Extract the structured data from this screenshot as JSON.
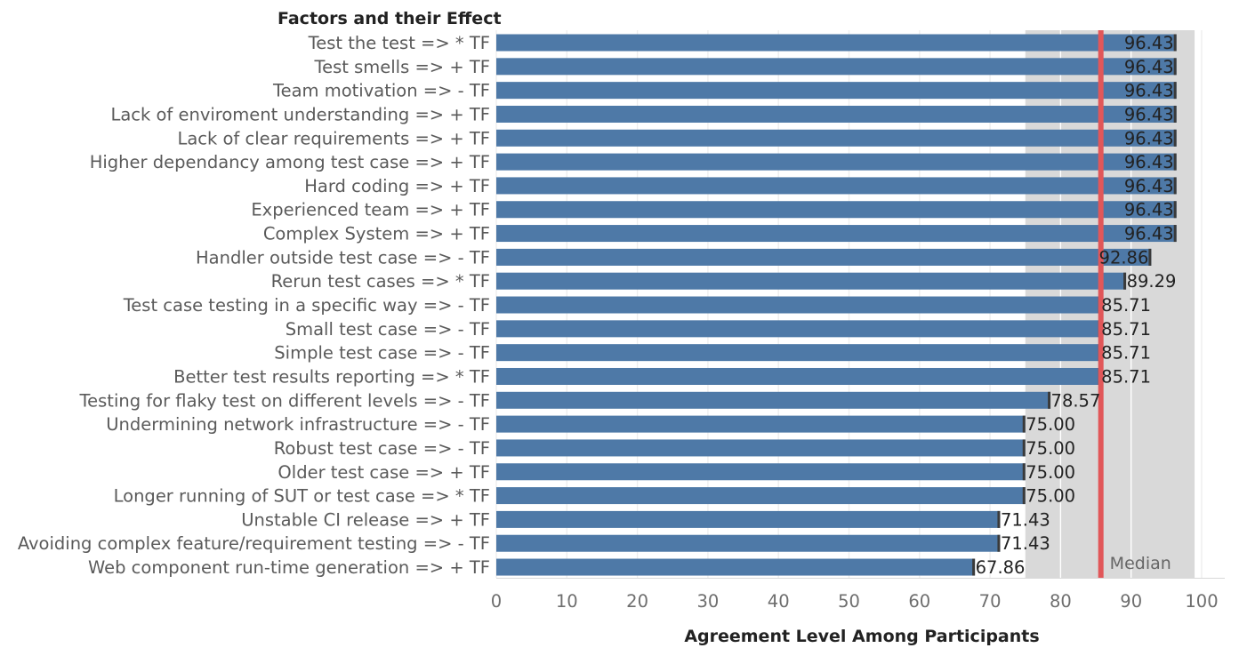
{
  "chart_data": {
    "type": "bar",
    "orientation": "horizontal",
    "row_header": "Factors and their Effect",
    "xlabel": "Agreement Level Among Participants",
    "xlim": [
      0,
      100
    ],
    "xticks": [
      "0",
      "10",
      "20",
      "30",
      "40",
      "50",
      "60",
      "70",
      "80",
      "90",
      "100"
    ],
    "grid": true,
    "bar_color": "#4e79a7",
    "band_color": "#d9d9d9",
    "median_color": "#e15759",
    "shaded_band": {
      "from": 75,
      "to": 99
    },
    "median": {
      "value": 85.71,
      "label": "Median"
    },
    "categories": [
      "Test the test => * TF",
      "Test smells => + TF",
      "Team motivation => - TF",
      "Lack of enviroment understanding  => + TF",
      "Lack of clear requirements => + TF",
      "Higher dependancy among test case => + TF",
      "Hard coding => + TF",
      "Experienced team => + TF",
      "Complex System => + TF",
      "Handler outside test case => - TF",
      "Rerun test cases => * TF",
      "Test case testing in a specific way => - TF",
      "Small test case  => - TF",
      "Simple test case => - TF",
      "Better test results reporting => * TF",
      "Testing for flaky test on different levels =>  - TF",
      "Undermining network infrastructure  => - TF",
      "Robust test case  => - TF",
      "Older test case => + TF",
      "Longer running of SUT or test case => * TF",
      "Unstable CI release => + TF",
      "Avoiding complex feature/requirement testing => - TF",
      "Web component run-time generation => + TF"
    ],
    "values": [
      96.43,
      96.43,
      96.43,
      96.43,
      96.43,
      96.43,
      96.43,
      96.43,
      96.43,
      92.86,
      89.29,
      85.71,
      85.71,
      85.71,
      85.71,
      78.57,
      75.0,
      75.0,
      75.0,
      75.0,
      71.43,
      71.43,
      67.86
    ],
    "value_labels": [
      "96.43",
      "96.43",
      "96.43",
      "96.43",
      "96.43",
      "96.43",
      "96.43",
      "96.43",
      "96.43",
      "92.86",
      "89.29",
      "85.71",
      "85.71",
      "85.71",
      "85.71",
      "78.57",
      "75.00",
      "75.00",
      "75.00",
      "75.00",
      "71.43",
      "71.43",
      "67.86"
    ]
  }
}
